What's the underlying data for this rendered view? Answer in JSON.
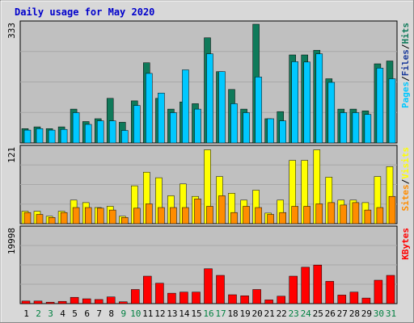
{
  "chart_data": {
    "type": "bar",
    "title": "Daily usage for May 2020",
    "categories": [
      "1",
      "2",
      "3",
      "4",
      "5",
      "6",
      "7",
      "8",
      "9",
      "10",
      "11",
      "12",
      "13",
      "14",
      "15",
      "16",
      "17",
      "18",
      "19",
      "20",
      "21",
      "22",
      "23",
      "24",
      "25",
      "26",
      "27",
      "28",
      "29",
      "30",
      "31"
    ],
    "weekend_days": [
      "2",
      "3",
      "9",
      "10",
      "16",
      "17",
      "23",
      "24",
      "30",
      "31"
    ],
    "colors": {
      "hits": "#0f7a5a",
      "files": "#00c8ff",
      "pages": "#1a3a9a",
      "visits": "#ffff00",
      "sites": "#ff8c00",
      "kbytes": "#ff0000",
      "title": "#0000cc",
      "weekday_label": "#000000",
      "weekend_label": "#008040",
      "panel_bg": "#c0c0c0",
      "frame_bg": "#d8d8d8"
    },
    "panels": [
      {
        "id": "top",
        "ymax_label": "333",
        "ymax": 333,
        "legend": [
          {
            "text": "Pages",
            "color": "#00c8ff"
          },
          {
            "text": "/",
            "color": "#000000"
          },
          {
            "text": "Files",
            "color": "#1a3a9a"
          },
          {
            "text": "/",
            "color": "#000000"
          },
          {
            "text": "Hits",
            "color": "#0f7a5a"
          }
        ],
        "series": [
          {
            "name": "Hits",
            "values": [
              40,
              45,
              40,
              45,
              95,
              60,
              68,
              125,
              58,
              118,
              225,
              125,
              95,
              115,
              110,
              295,
              200,
              150,
              95,
              333,
              68,
              88,
              247,
              247,
              260,
              180,
              95,
              95,
              90,
              222,
              230
            ]
          },
          {
            "name": "Files",
            "values": [
              36,
              40,
              36,
              38,
              85,
              52,
              62,
              62,
              35,
              105,
              195,
              140,
              85,
              205,
              95,
              250,
              200,
              110,
              85,
              185,
              68,
              62,
              228,
              227,
              250,
              170,
              85,
              85,
              80,
              210,
              180
            ]
          },
          {
            "name": "Pages",
            "values": [
              0,
              0,
              0,
              0,
              0,
              0,
              0,
              0,
              0,
              0,
              0,
              0,
              0,
              0,
              0,
              0,
              0,
              0,
              0,
              0,
              0,
              0,
              0,
              0,
              0,
              0,
              0,
              0,
              0,
              0,
              0
            ]
          }
        ]
      },
      {
        "id": "middle",
        "ymax_label": "121",
        "ymax": 121,
        "legend": [
          {
            "text": "Sites",
            "color": "#ff8c00"
          },
          {
            "text": "/",
            "color": "#000000"
          },
          {
            "text": "Visits",
            "color": "#ffff00"
          }
        ],
        "series": [
          {
            "name": "Visits",
            "values": [
              20,
              20,
              12,
              20,
              38,
              34,
              26,
              28,
              12,
              61,
              83,
              74,
              45,
              64,
              44,
              119,
              76,
              49,
              38,
              54,
              17,
              38,
              102,
              102,
              119,
              75,
              38,
              38,
              34,
              76,
              92
            ]
          },
          {
            "name": "Sites",
            "values": [
              18,
              15,
              10,
              18,
              26,
              26,
              25,
              22,
              10,
              25,
              32,
              26,
              26,
              26,
              40,
              28,
              45,
              18,
              28,
              26,
              15,
              18,
              28,
              28,
              32,
              34,
              30,
              34,
              22,
              26,
              44
            ]
          }
        ]
      },
      {
        "id": "bottom",
        "ymax_label": "19998",
        "ymax": 19998,
        "legend": [
          {
            "text": "KBytes",
            "color": "#ff0000"
          }
        ],
        "series": [
          {
            "name": "KBytes",
            "values": [
              700,
              700,
              400,
              600,
              1700,
              1300,
              1100,
              1800,
              500,
              3800,
              7400,
              5500,
              2800,
              3100,
              3100,
              9400,
              7600,
              2400,
              2100,
              3800,
              1000,
              2000,
              7400,
              9800,
              10400,
              6000,
              2300,
              3100,
              1500,
              6300,
              7600
            ]
          }
        ]
      }
    ]
  }
}
